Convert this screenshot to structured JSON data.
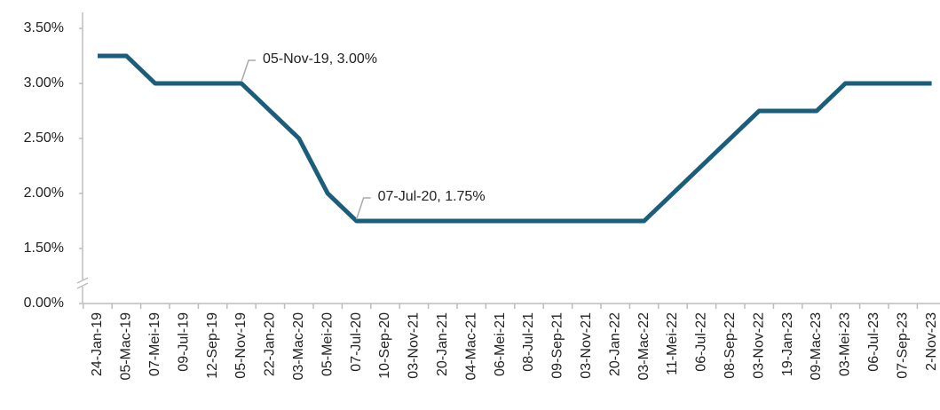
{
  "chart_data": {
    "type": "line",
    "categories": [
      "24-Jan-19",
      "05-Mac-19",
      "07-Mei-19",
      "09-Jul-19",
      "12-Sep-19",
      "05-Nov-19",
      "22-Jan-20",
      "03-Mac-20",
      "05-Mei-20",
      "07-Jul-20",
      "10-Sep-20",
      "03-Nov-21",
      "20-Jan-21",
      "04-Mac-21",
      "06-Mei-21",
      "08-Jul-21",
      "09-Sep-21",
      "03-Nov-21",
      "20-Jan-22",
      "03-Mac-22",
      "11-Mei-22",
      "06-Jul-22",
      "08-Sep-22",
      "03-Nov-22",
      "19-Jan-23",
      "09-Mac-23",
      "03-Mei-23",
      "06-Jul-23",
      "07-Sep-23",
      "2-Nov-23"
    ],
    "values": [
      3.25,
      3.25,
      3.0,
      3.0,
      3.0,
      3.0,
      2.75,
      2.5,
      2.0,
      1.75,
      1.75,
      1.75,
      1.75,
      1.75,
      1.75,
      1.75,
      1.75,
      1.75,
      1.75,
      1.75,
      2.0,
      2.25,
      2.5,
      2.75,
      2.75,
      2.75,
      3.0,
      3.0,
      3.0,
      3.0
    ],
    "color": "#1b5e7b",
    "ylim": [
      0,
      3.5
    ],
    "yticks": [
      {
        "value": 0,
        "label": "0.00%"
      },
      {
        "value": 1.5,
        "label": "1.50%"
      },
      {
        "value": 2,
        "label": "2.00%"
      },
      {
        "value": 2.5,
        "label": "2.50%"
      },
      {
        "value": 3,
        "label": "3.00%"
      },
      {
        "value": 3.5,
        "label": "3.50%"
      }
    ],
    "axis_break": true,
    "annotations": [
      {
        "label": "05-Nov-19, 3.00%",
        "x": "05-Nov-19",
        "y": 3
      },
      {
        "label": "07-Jul-20, 1.75%",
        "x": "07-Jul-20",
        "y": 1.75
      }
    ]
  }
}
